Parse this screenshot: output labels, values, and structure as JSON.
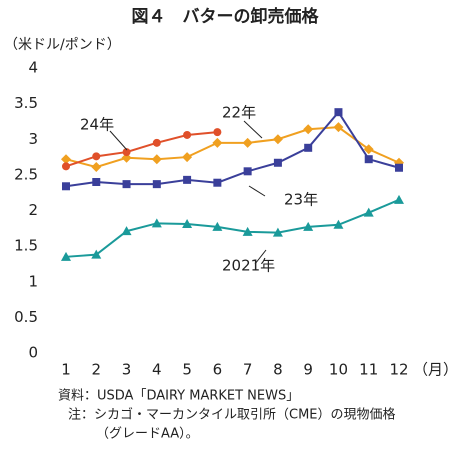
{
  "chart_data": {
    "type": "line",
    "title": "図４　バターの卸売価格",
    "y_label": "（米ドル/ポンド）",
    "x_label": "（月）",
    "categories": [
      "1",
      "2",
      "3",
      "4",
      "5",
      "6",
      "7",
      "8",
      "9",
      "10",
      "11",
      "12"
    ],
    "ylim": [
      0,
      4
    ],
    "yticks": [
      0,
      0.5,
      1,
      1.5,
      2,
      2.5,
      3,
      3.5,
      4
    ],
    "grid": false,
    "series": [
      {
        "name": "2021年",
        "color": "#1a9a9a",
        "marker": "triangle",
        "values": [
          1.35,
          1.38,
          1.71,
          1.82,
          1.81,
          1.77,
          1.7,
          1.69,
          1.77,
          1.8,
          1.97,
          2.15
        ]
      },
      {
        "name": "22年",
        "color": "#f0a020",
        "marker": "diamond",
        "values": [
          2.72,
          2.61,
          2.74,
          2.72,
          2.75,
          2.95,
          2.95,
          3.0,
          3.14,
          3.17,
          2.86,
          2.67
        ]
      },
      {
        "name": "23年",
        "color": "#3a3f9a",
        "marker": "square",
        "values": [
          2.34,
          2.4,
          2.37,
          2.37,
          2.43,
          2.39,
          2.55,
          2.67,
          2.88,
          3.38,
          2.72,
          2.6
        ]
      },
      {
        "name": "24年",
        "color": "#e0502a",
        "marker": "circle",
        "values": [
          2.62,
          2.76,
          2.82,
          2.95,
          3.06,
          3.1,
          null,
          null,
          null,
          null,
          null,
          null
        ]
      }
    ],
    "notes": [
      "資料：USDA「DAIRY MARKET NEWS」",
      "注：シカゴ・マーカンタイル取引所（CME）の現物価格",
      "（グレードAA）。"
    ]
  }
}
